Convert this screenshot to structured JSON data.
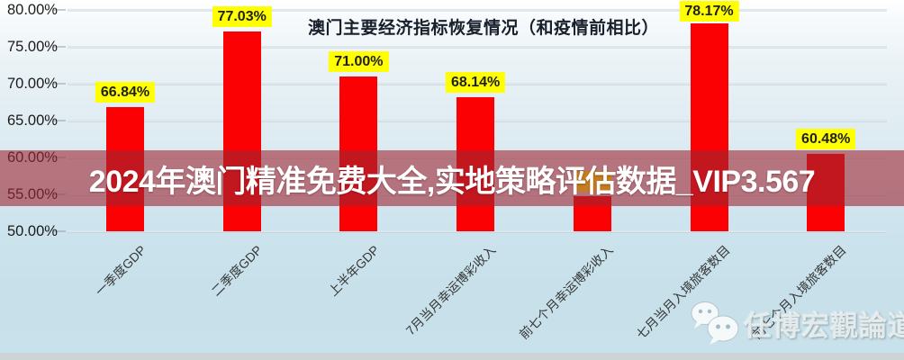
{
  "banner": {
    "text": "2024年澳门精准免费大全,实地策略评估数据_VIP3.567"
  },
  "watermark": {
    "text": "任博宏觀論道",
    "icon": "wechat-icon"
  },
  "chart_data": {
    "type": "bar",
    "title": "澳门主要经济指标恢复情况（和疫情前相比）",
    "categories": [
      "一季度GDP",
      "二季度GDP",
      "上半年GDP",
      "7月当月幸运博彩收入",
      "前七个月幸运博彩收入",
      "七月当月入境旅客数目",
      "前七个月入境旅客数目"
    ],
    "values": [
      66.84,
      77.03,
      71.0,
      68.14,
      54.8,
      78.17,
      60.48
    ],
    "data_labels": [
      "66.84%",
      "77.03%",
      "71.00%",
      "68.14%",
      "",
      "78.17%",
      "60.48%"
    ],
    "y_ticks": [
      "80.00%",
      "75.00%",
      "70.00%",
      "65.00%",
      "60.00%",
      "55.00%",
      "50.00%"
    ],
    "ylim": [
      50,
      80
    ],
    "xlabel": "",
    "ylabel": "",
    "grid": true,
    "legend": "none",
    "colors": {
      "bar": "#fb0104",
      "data_label_bg": "#ffff00",
      "banner_overlay": "rgba(158,38,50,0.60)"
    }
  }
}
